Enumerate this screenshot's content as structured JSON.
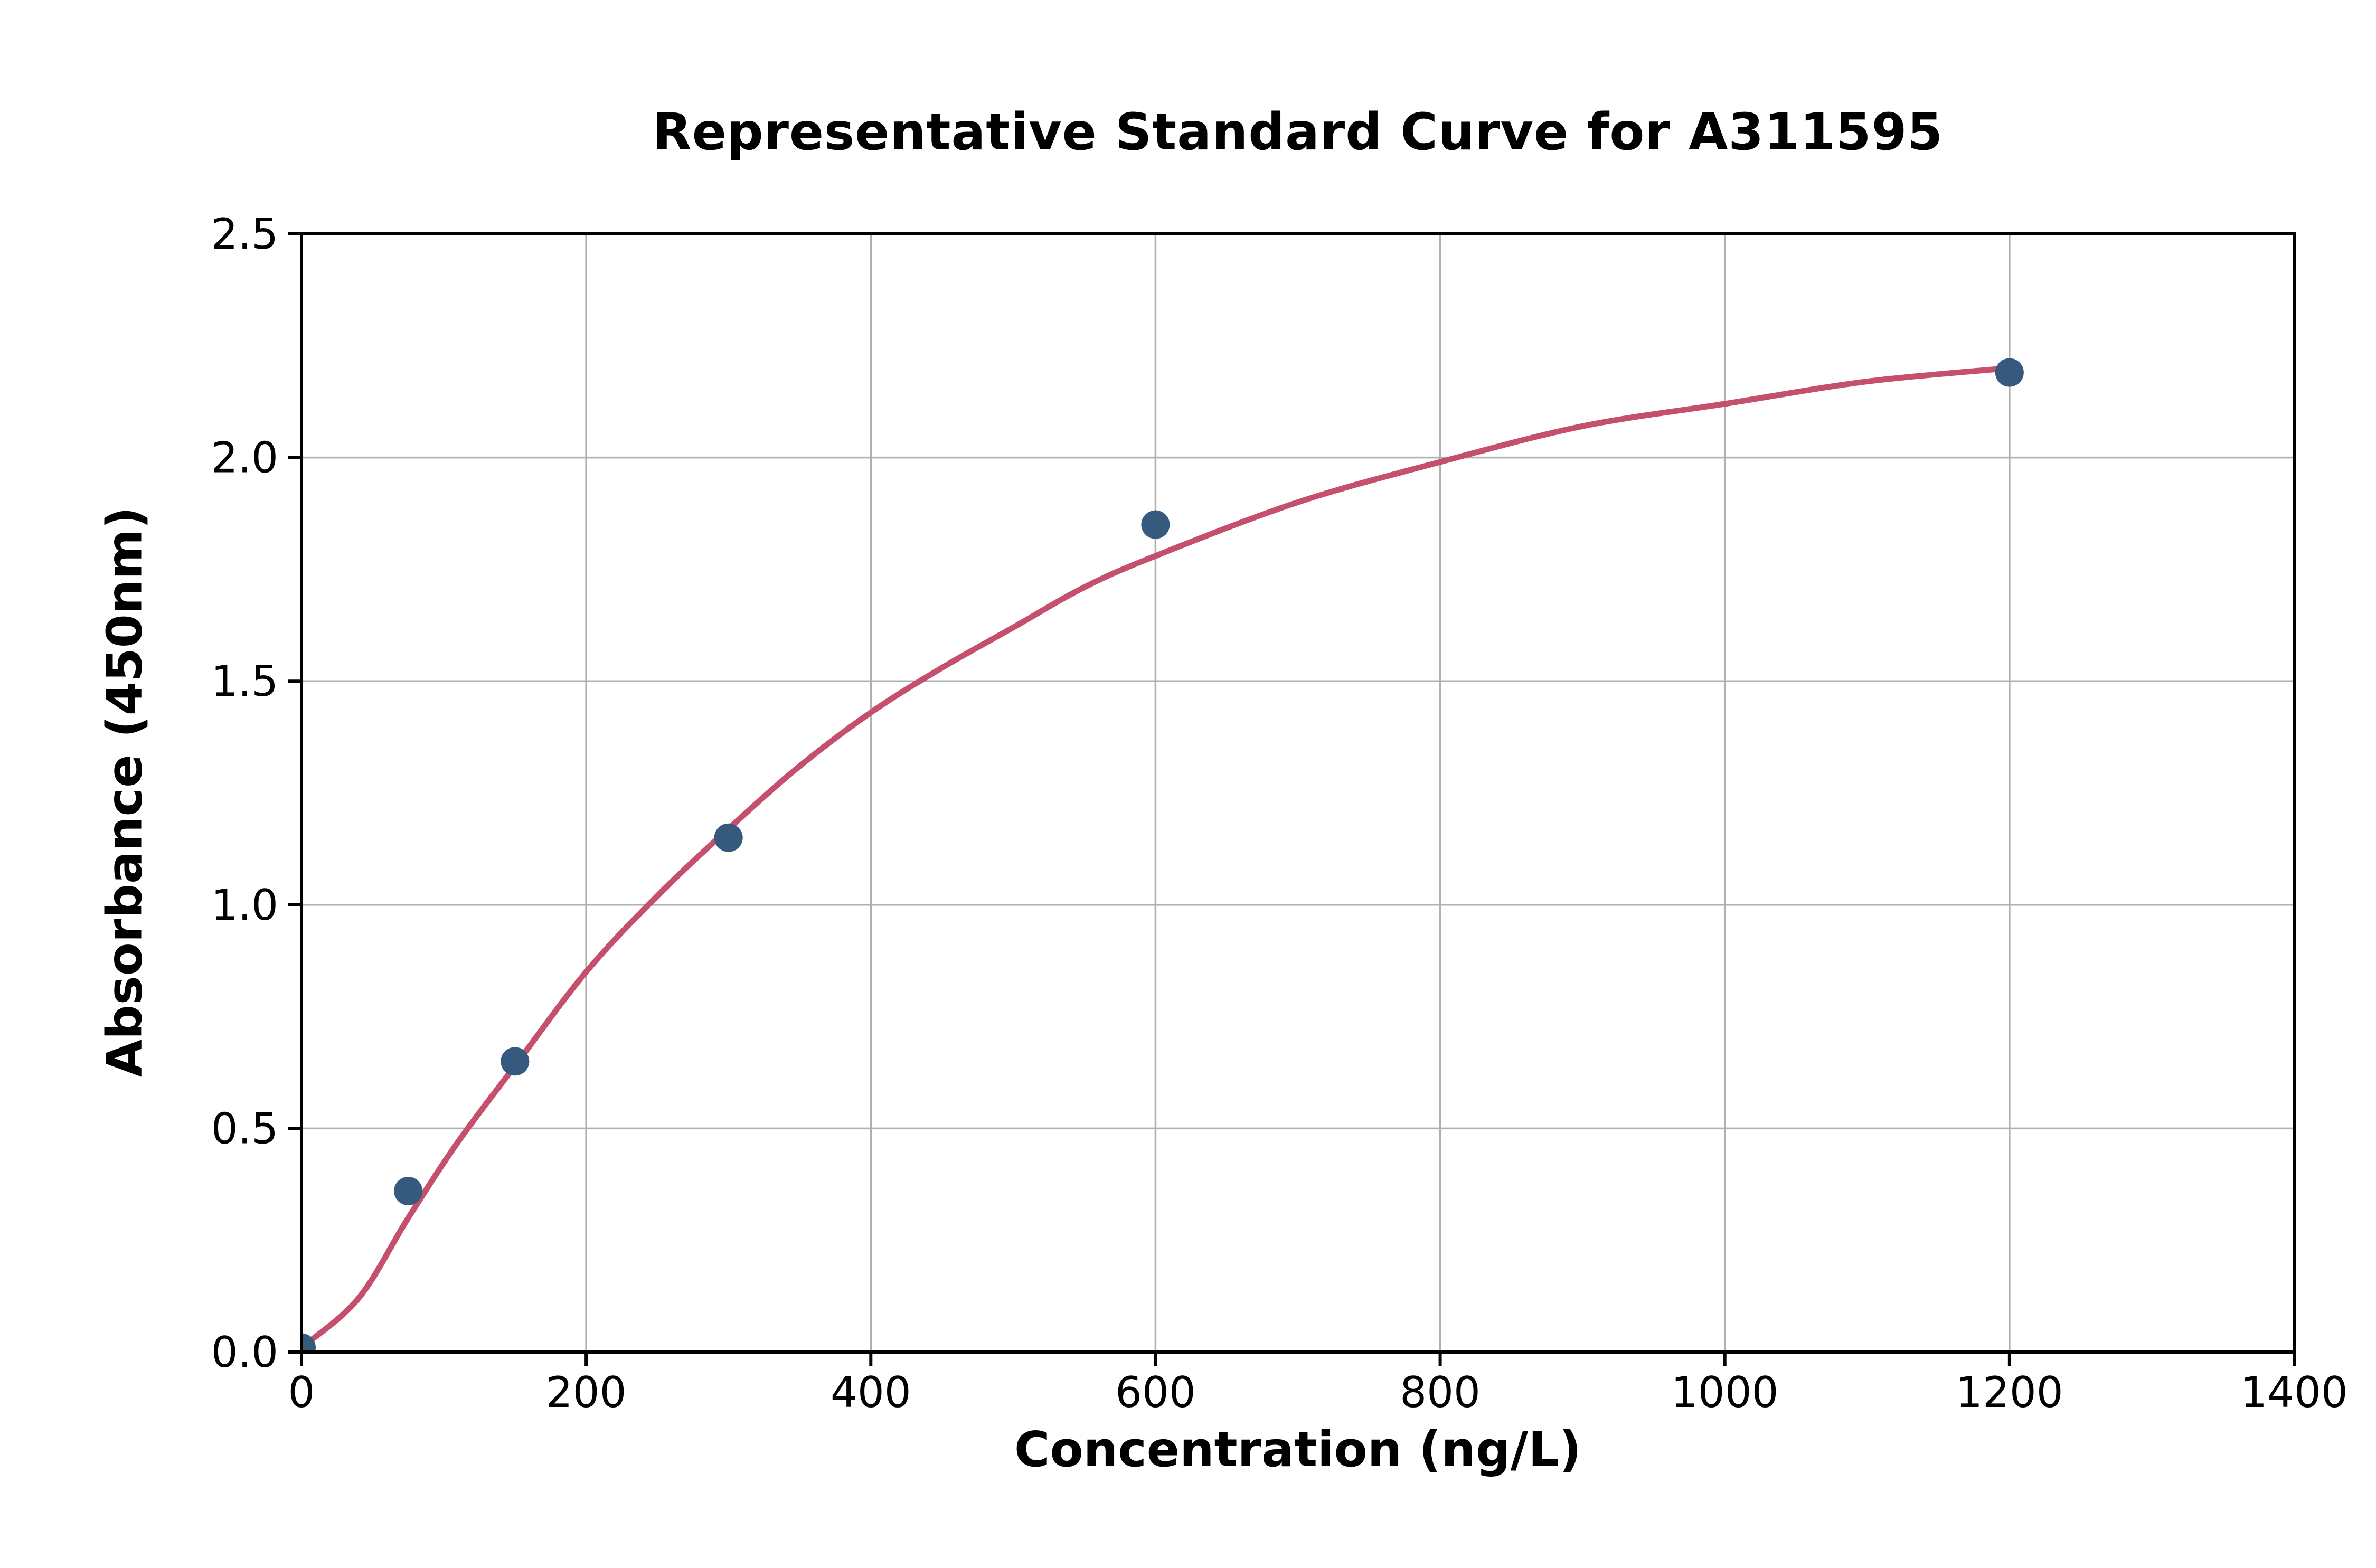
{
  "chart_data": {
    "type": "scatter",
    "title": "Representative Standard Curve for A311595",
    "xlabel": "Concentration (ng/L)",
    "ylabel": "Absorbance (450nm)",
    "xlim": [
      0,
      1400
    ],
    "ylim": [
      0,
      2.5
    ],
    "xticks": [
      0,
      200,
      400,
      600,
      800,
      1000,
      1200,
      1400
    ],
    "xtick_labels": [
      "0",
      "200",
      "400",
      "600",
      "800",
      "1000",
      "1200",
      "1400"
    ],
    "yticks": [
      0,
      0.5,
      1.0,
      1.5,
      2.0,
      2.5
    ],
    "ytick_labels": [
      "0.0",
      "0.5",
      "1.0",
      "1.5",
      "2.0",
      "2.5"
    ],
    "grid": true,
    "legend_position": "none",
    "axes": {
      "spine_color": "#000000",
      "grid_color": "#B0B0B0",
      "tick_color": "#000000",
      "background": "#FFFFFF"
    },
    "series": [
      {
        "name": "fitted-curve",
        "type": "line",
        "color": "#C5506E",
        "line_width": 11,
        "x": [
          0,
          40,
          75,
          110,
          150,
          200,
          250,
          300,
          350,
          400,
          450,
          500,
          550,
          600,
          700,
          800,
          900,
          1000,
          1100,
          1200
        ],
        "y": [
          0.01,
          0.12,
          0.3,
          0.47,
          0.64,
          0.85,
          1.02,
          1.17,
          1.31,
          1.43,
          1.53,
          1.62,
          1.71,
          1.78,
          1.9,
          1.99,
          2.07,
          2.12,
          2.17,
          2.2
        ]
      },
      {
        "name": "standard-points",
        "type": "scatter",
        "color": "#36597E",
        "marker_radius": 27,
        "x": [
          0,
          75,
          150,
          300,
          600,
          1200
        ],
        "y": [
          0.01,
          0.36,
          0.65,
          1.15,
          1.85,
          2.19
        ]
      }
    ]
  }
}
